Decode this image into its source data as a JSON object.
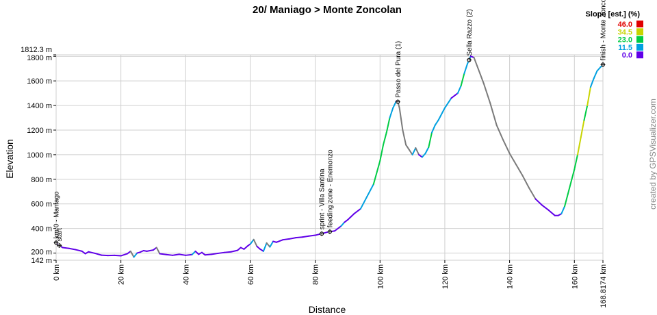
{
  "chart_data": {
    "type": "area",
    "title": "20/ Maniago > Monte Zoncolan",
    "xlabel": "Distance",
    "ylabel": "Elevation",
    "xlim": [
      0,
      168.8174
    ],
    "ylim": [
      142,
      1812.3
    ],
    "x_ticks": [
      {
        "v": 0,
        "label": "0 km"
      },
      {
        "v": 20,
        "label": "20 km"
      },
      {
        "v": 40,
        "label": "40 km"
      },
      {
        "v": 60,
        "label": "60 km"
      },
      {
        "v": 80,
        "label": "80 km"
      },
      {
        "v": 100,
        "label": "100 km"
      },
      {
        "v": 120,
        "label": "120 km"
      },
      {
        "v": 140,
        "label": "140 km"
      },
      {
        "v": 160,
        "label": "160 km"
      },
      {
        "v": 168.8174,
        "label": "168.8174 km"
      }
    ],
    "y_ticks": [
      {
        "v": 142,
        "label": "142 m"
      },
      {
        "v": 200,
        "label": "200 m"
      },
      {
        "v": 400,
        "label": "400 m"
      },
      {
        "v": 600,
        "label": "600 m"
      },
      {
        "v": 800,
        "label": "800 m"
      },
      {
        "v": 1000,
        "label": "1000 m"
      },
      {
        "v": 1200,
        "label": "1200 m"
      },
      {
        "v": 1400,
        "label": "1400 m"
      },
      {
        "v": 1600,
        "label": "1600 m"
      },
      {
        "v": 1800,
        "label": "1800 m"
      },
      {
        "v": 1812.3,
        "label": "1812.3 m"
      }
    ],
    "x": [
      0,
      1,
      2,
      4,
      6,
      8,
      9,
      10,
      12,
      14,
      16,
      18,
      20,
      22,
      23,
      24,
      25,
      26,
      27,
      28,
      30,
      31,
      32,
      34,
      36,
      38,
      40,
      42,
      43,
      44,
      45,
      46,
      48,
      50,
      52,
      54,
      56,
      57,
      58,
      59,
      60,
      61,
      62,
      63,
      64,
      65,
      66,
      67,
      68,
      70,
      72,
      74,
      76,
      78,
      80,
      82,
      84,
      86,
      88,
      89,
      90,
      91,
      92,
      94,
      96,
      98,
      100,
      101,
      102,
      103,
      104,
      105,
      105.5,
      106,
      107,
      108,
      109,
      110,
      111,
      112,
      113,
      114,
      115,
      116,
      117,
      118,
      120,
      122,
      124,
      125,
      126,
      127,
      128,
      129,
      130,
      131,
      132,
      134,
      136,
      138,
      140,
      142,
      144,
      146,
      148,
      150,
      152,
      154,
      155,
      156,
      157,
      158,
      159,
      160,
      161,
      162,
      163,
      164,
      165,
      166,
      167,
      168,
      168.8174
    ],
    "y": [
      285,
      262,
      245,
      238,
      228,
      215,
      195,
      210,
      198,
      183,
      180,
      182,
      178,
      195,
      215,
      168,
      200,
      208,
      220,
      215,
      225,
      245,
      195,
      188,
      182,
      190,
      182,
      188,
      215,
      190,
      205,
      185,
      190,
      198,
      205,
      210,
      222,
      245,
      232,
      255,
      275,
      310,
      255,
      232,
      215,
      282,
      250,
      295,
      288,
      308,
      315,
      325,
      330,
      338,
      345,
      358,
      372,
      380,
      420,
      450,
      470,
      495,
      520,
      560,
      660,
      760,
      950,
      1080,
      1180,
      1300,
      1380,
      1435,
      1430,
      1380,
      1200,
      1080,
      1040,
      1000,
      1055,
      1000,
      980,
      1010,
      1060,
      1180,
      1240,
      1280,
      1380,
      1460,
      1500,
      1560,
      1660,
      1740,
      1800,
      1790,
      1720,
      1650,
      1580,
      1420,
      1240,
      1120,
      1010,
      920,
      830,
      730,
      640,
      590,
      550,
      505,
      505,
      520,
      580,
      680,
      780,
      880,
      1000,
      1140,
      1280,
      1400,
      1550,
      1620,
      1680,
      1710,
      1732
    ],
    "waypoints": [
      {
        "x": 0,
        "label": "km 0 - Maniago"
      },
      {
        "x": 1,
        "label": "start"
      },
      {
        "x": 82,
        "label": "sprint - Villa Santina"
      },
      {
        "x": 84.5,
        "label": "feeding zone - Enemonzo"
      },
      {
        "x": 105.5,
        "label": "Passo del Pura (1)"
      },
      {
        "x": 127.5,
        "label": "Sella Razzo (2)"
      },
      {
        "x": 168.8174,
        "label": "finish - Monte Zoncolan"
      }
    ],
    "legend": {
      "title": "Slope [est.] (%)",
      "placement": "top-right",
      "items": [
        {
          "label": "46.0",
          "color": "#e00000"
        },
        {
          "label": "34.5",
          "color": "#c8d400"
        },
        {
          "label": "23.0",
          "color": "#00cc44"
        },
        {
          "label": "11.5",
          "color": "#00a0e0"
        },
        {
          "label": "0.0",
          "color": "#6000e8"
        }
      ]
    },
    "grid": true
  },
  "credit": "created by GPSVisualizer.com"
}
